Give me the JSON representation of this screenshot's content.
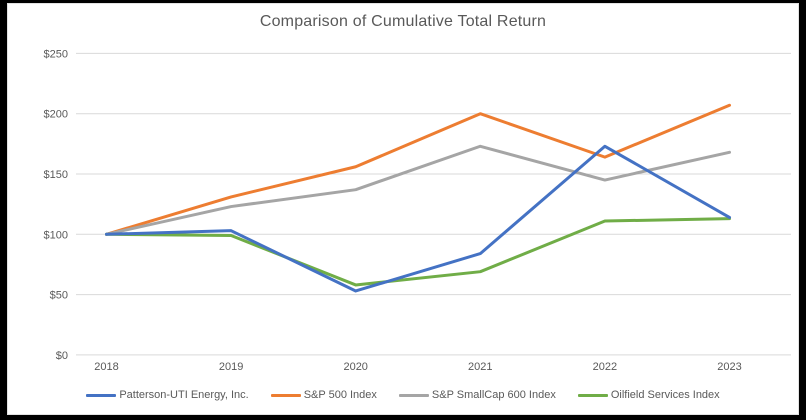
{
  "chart_data": {
    "type": "line",
    "title": "Comparison of Cumulative Total Return",
    "categories": [
      "2018",
      "2019",
      "2020",
      "2021",
      "2022",
      "2023"
    ],
    "xlabel": "",
    "ylabel": "",
    "ylim": [
      0,
      250
    ],
    "ytick_values": [
      0,
      50,
      100,
      150,
      200,
      250
    ],
    "ytick_labels": [
      "$0",
      "$50",
      "$100",
      "$150",
      "$200",
      "$250"
    ],
    "grid": true,
    "legend_position": "bottom",
    "series": [
      {
        "name": "Patterson-UTI Energy, Inc.",
        "color": "#4472C4",
        "values": [
          100,
          103,
          53,
          84,
          173,
          114
        ]
      },
      {
        "name": "S&P 500 Index",
        "color": "#ED7D31",
        "values": [
          100,
          131,
          156,
          200,
          164,
          207
        ]
      },
      {
        "name": "S&P SmallCap 600 Index",
        "color": "#A5A5A5",
        "values": [
          100,
          123,
          137,
          173,
          145,
          168
        ]
      },
      {
        "name": "Oilfield Services Index",
        "color": "#70AD47",
        "values": [
          100,
          99,
          58,
          69,
          111,
          113
        ]
      }
    ],
    "colors": {
      "plot_background": "#FFFFFF",
      "outer_frame": "#000000",
      "gridline": "#D9D9D9",
      "text": "#595959"
    }
  }
}
